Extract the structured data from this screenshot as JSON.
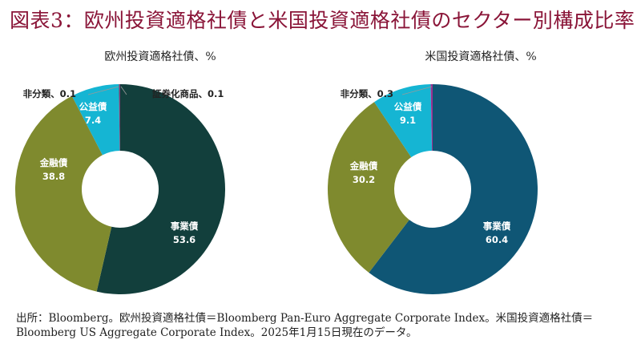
{
  "title": "図表3：欧州投資適格社債と米国投資適格社債のセクター別構成比率",
  "source": "出所：Bloomberg。欧州投資適格社債＝Bloomberg Pan-Euro Aggregate Corporate Index。米国投資適格社債＝Bloomberg US Aggregate Corporate Index。2025年1月15日現在のデータ。",
  "colors": {
    "title": "#8a1538",
    "business_eu": "#123f3c",
    "business_us": "#0f5675",
    "finance": "#7f8a2e",
    "public": "#15b5d3",
    "other": "#9b2e8f"
  },
  "chart_data": [
    {
      "type": "pie",
      "title": "欧州投資適格社債、%",
      "donut": true,
      "slices": [
        {
          "name": "事業債",
          "value": 53.6,
          "label": "53.6",
          "color": "#123f3c"
        },
        {
          "name": "金融債",
          "value": 38.8,
          "label": "38.8",
          "color": "#7f8a2e"
        },
        {
          "name": "公益債",
          "value": 7.4,
          "label": "7.4",
          "color": "#15b5d3"
        },
        {
          "name": "非分類",
          "value": 0.1,
          "label": "0.1",
          "color": "#555555"
        },
        {
          "name": "証券化商品",
          "value": 0.1,
          "label": "0.1",
          "color": "#9b2e8f"
        }
      ]
    },
    {
      "type": "pie",
      "title": "米国投資適格社債、%",
      "donut": true,
      "slices": [
        {
          "name": "事業債",
          "value": 60.4,
          "label": "60.4",
          "color": "#0f5675"
        },
        {
          "name": "金融債",
          "value": 30.2,
          "label": "30.2",
          "color": "#7f8a2e"
        },
        {
          "name": "公益債",
          "value": 9.1,
          "label": "9.1",
          "color": "#15b5d3"
        },
        {
          "name": "非分類",
          "value": 0.3,
          "label": "0.3",
          "color": "#9b2e8f"
        }
      ]
    }
  ]
}
